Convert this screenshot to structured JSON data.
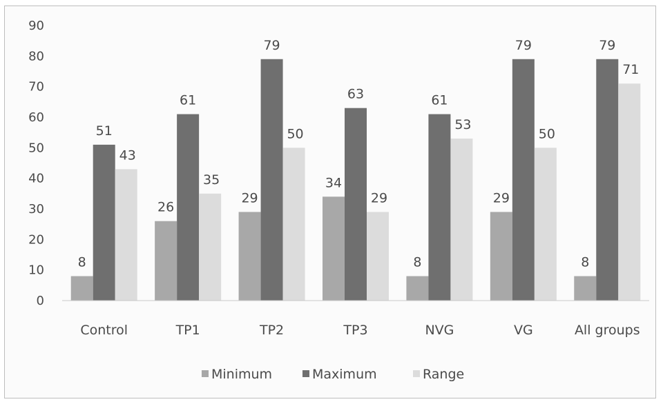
{
  "chart_data": {
    "type": "bar",
    "title": "",
    "xlabel": "",
    "ylabel": "",
    "ylim": [
      0,
      90
    ],
    "yticks": [
      0,
      10,
      20,
      30,
      40,
      50,
      60,
      70,
      80,
      90
    ],
    "categories": [
      "Control",
      "TP1",
      "TP2",
      "TP3",
      "NVG",
      "VG",
      "All groups"
    ],
    "series": [
      {
        "name": "Minimum",
        "color": "#a8a8a8",
        "values": [
          8,
          26,
          29,
          34,
          8,
          29,
          8
        ]
      },
      {
        "name": "Maximum",
        "color": "#6f6f6f",
        "values": [
          51,
          61,
          79,
          63,
          61,
          79,
          79
        ]
      },
      {
        "name": "Range",
        "color": "#dcdcdc",
        "values": [
          43,
          35,
          50,
          29,
          53,
          50,
          71
        ]
      }
    ],
    "grid": false,
    "legend_position": "bottom"
  }
}
